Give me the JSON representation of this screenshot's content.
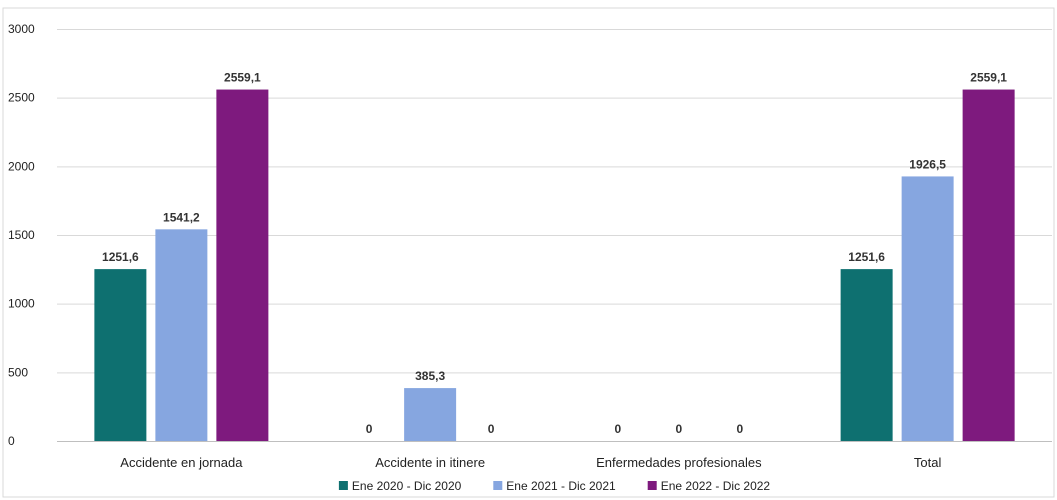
{
  "chart_data": {
    "type": "bar",
    "categories": [
      "Accidente en jornada",
      "Accidente in itinere",
      "Enfermedades profesionales",
      "Total"
    ],
    "series": [
      {
        "name": "Ene 2020 - Dic 2020",
        "color": "#0e7070",
        "values": [
          1251.6,
          0,
          0,
          1251.6
        ],
        "labels": [
          "1251,6",
          "0",
          "0",
          "1251,6"
        ]
      },
      {
        "name": "Ene 2021 - Dic 2021",
        "color": "#86a6e0",
        "values": [
          1541.2,
          385.3,
          0,
          1926.5
        ],
        "labels": [
          "1541,2",
          "385,3",
          "0",
          "1926,5"
        ]
      },
      {
        "name": "Ene 2022 - Dic 2022",
        "color": "#7e1a7e",
        "values": [
          2559.1,
          0,
          0,
          2559.1
        ],
        "labels": [
          "2559,1",
          "0",
          "0",
          "2559,1"
        ]
      }
    ],
    "yticks": [
      0,
      500,
      1000,
      1500,
      2000,
      2500,
      3000
    ],
    "ylim": [
      0,
      3000
    ],
    "grid": true,
    "legend": "bottom",
    "title": "",
    "xlabel": "",
    "ylabel": ""
  }
}
